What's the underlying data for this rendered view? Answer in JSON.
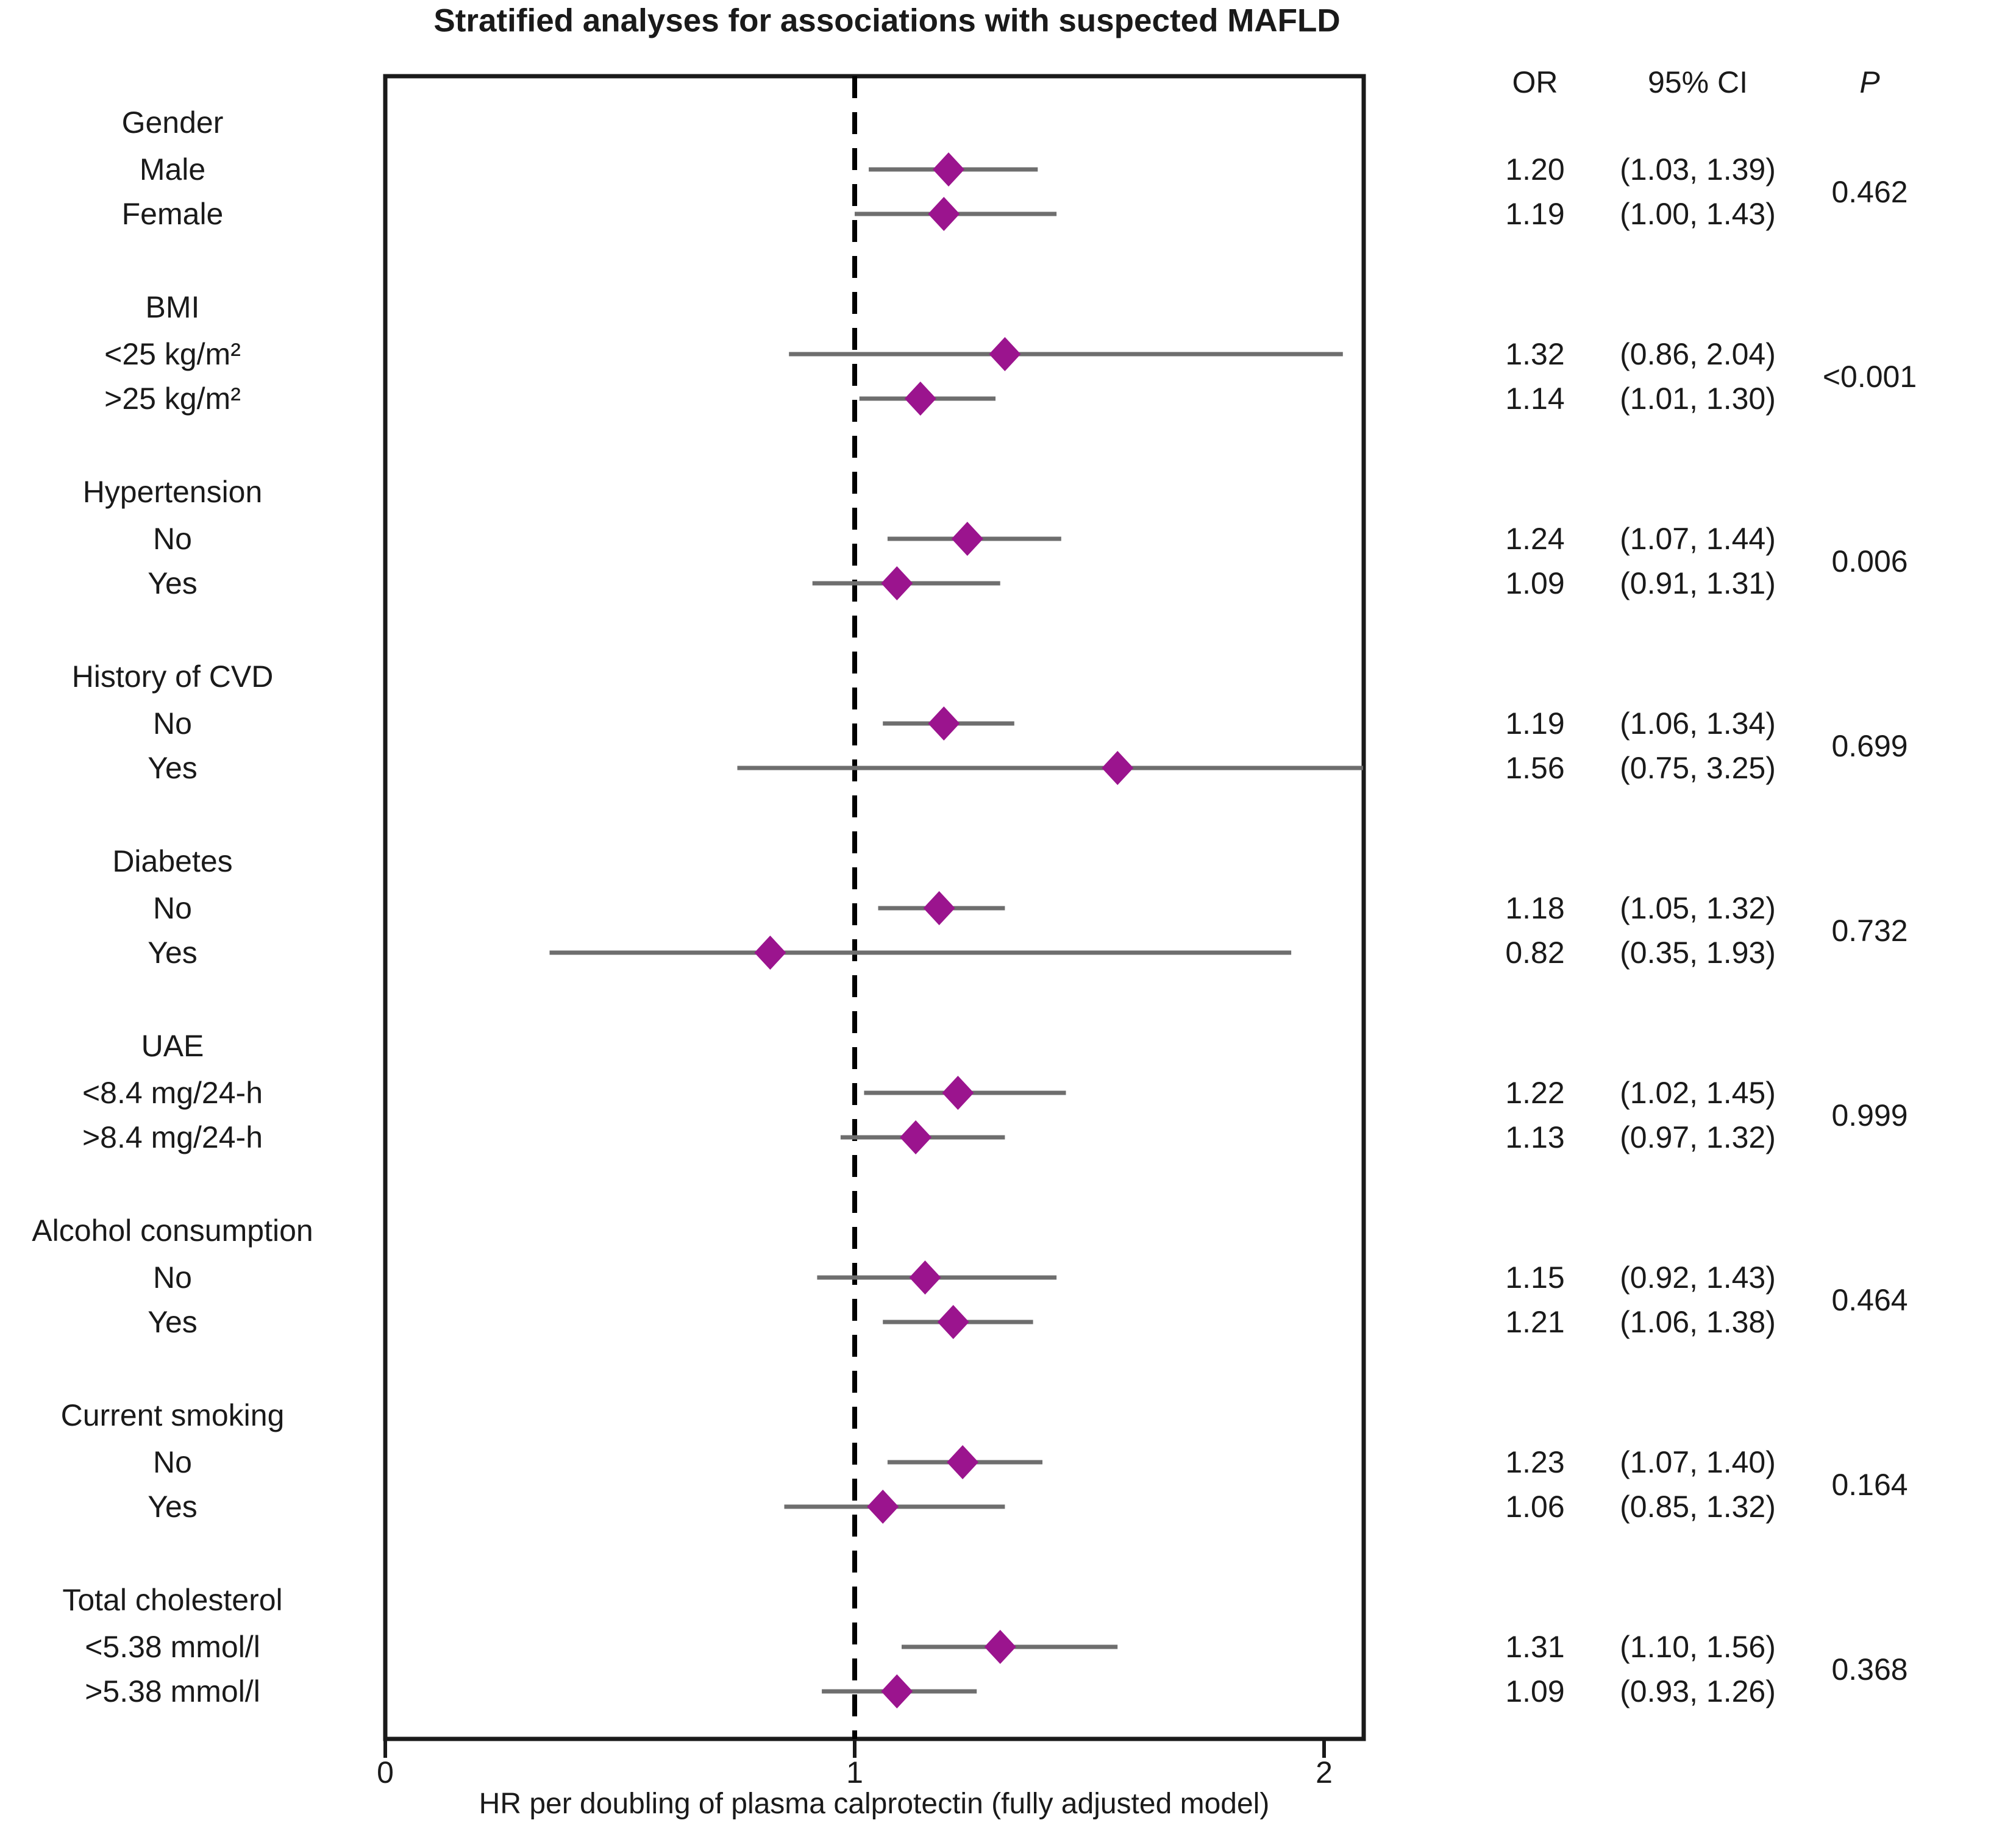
{
  "colors": {
    "diamond": "#9B148E",
    "ci_line": "#6E6E6E",
    "frame": "#1A1A1A",
    "reference_line": "#000000"
  },
  "chart_data": {
    "type": "forest",
    "title": "Stratified analyses for associations with suspected MAFLD",
    "xlabel": "HR per doubling of plasma calprotectin (fully adjusted model)",
    "xlim": [
      0,
      2.083
    ],
    "x_tick_values": [
      0,
      1,
      2
    ],
    "x_tick_labels": [
      "0",
      "1",
      "2"
    ],
    "reference_line": 1.0,
    "grid": false,
    "columns": {
      "or": "OR",
      "ci": "95% CI",
      "p": "P"
    },
    "groups": [
      {
        "label": "Gender",
        "p": "0.462",
        "rows": [
          {
            "label": "Male",
            "or": "1.20",
            "ci": "(1.03, 1.39)",
            "est": 1.2,
            "lo": 1.03,
            "hi": 1.39
          },
          {
            "label": "Female",
            "or": "1.19",
            "ci": "(1.00, 1.43)",
            "est": 1.19,
            "lo": 1.0,
            "hi": 1.43
          }
        ]
      },
      {
        "label": "BMI",
        "p": "<0.001",
        "rows": [
          {
            "label": "<25 kg/m²",
            "or": "1.32",
            "ci": "(0.86, 2.04)",
            "est": 1.32,
            "lo": 0.86,
            "hi": 2.04
          },
          {
            "label": ">25 kg/m²",
            "or": "1.14",
            "ci": "(1.01, 1.30)",
            "est": 1.14,
            "lo": 1.01,
            "hi": 1.3
          }
        ]
      },
      {
        "label": "Hypertension",
        "p": "0.006",
        "rows": [
          {
            "label": "No",
            "or": "1.24",
            "ci": "(1.07, 1.44)",
            "est": 1.24,
            "lo": 1.07,
            "hi": 1.44
          },
          {
            "label": "Yes",
            "or": "1.09",
            "ci": "(0.91, 1.31)",
            "est": 1.09,
            "lo": 0.91,
            "hi": 1.31
          }
        ]
      },
      {
        "label": "History of CVD",
        "p": "0.699",
        "rows": [
          {
            "label": "No",
            "or": "1.19",
            "ci": "(1.06, 1.34)",
            "est": 1.19,
            "lo": 1.06,
            "hi": 1.34
          },
          {
            "label": "Yes",
            "or": "1.56",
            "ci": "(0.75, 3.25)",
            "est": 1.56,
            "lo": 0.75,
            "hi": 3.25
          }
        ]
      },
      {
        "label": "Diabetes",
        "p": "0.732",
        "rows": [
          {
            "label": "No",
            "or": "1.18",
            "ci": "(1.05, 1.32)",
            "est": 1.18,
            "lo": 1.05,
            "hi": 1.32
          },
          {
            "label": "Yes",
            "or": "0.82",
            "ci": "(0.35, 1.93)",
            "est": 0.82,
            "lo": 0.35,
            "hi": 1.93
          }
        ]
      },
      {
        "label": "UAE",
        "p": "0.999",
        "rows": [
          {
            "label": "<8.4 mg/24-h",
            "or": "1.22",
            "ci": "(1.02, 1.45)",
            "est": 1.22,
            "lo": 1.02,
            "hi": 1.45
          },
          {
            "label": ">8.4 mg/24-h",
            "or": "1.13",
            "ci": "(0.97, 1.32)",
            "est": 1.13,
            "lo": 0.97,
            "hi": 1.32
          }
        ]
      },
      {
        "label": "Alcohol consumption",
        "p": "0.464",
        "rows": [
          {
            "label": "No",
            "or": "1.15",
            "ci": "(0.92, 1.43)",
            "est": 1.15,
            "lo": 0.92,
            "hi": 1.43
          },
          {
            "label": "Yes",
            "or": "1.21",
            "ci": "(1.06, 1.38)",
            "est": 1.21,
            "lo": 1.06,
            "hi": 1.38
          }
        ]
      },
      {
        "label": "Current smoking",
        "p": "0.164",
        "rows": [
          {
            "label": "No",
            "or": "1.23",
            "ci": "(1.07, 1.40)",
            "est": 1.23,
            "lo": 1.07,
            "hi": 1.4
          },
          {
            "label": "Yes",
            "or": "1.06",
            "ci": "(0.85, 1.32)",
            "est": 1.06,
            "lo": 0.85,
            "hi": 1.32
          }
        ]
      },
      {
        "label": "Total cholesterol",
        "p": "0.368",
        "rows": [
          {
            "label": "<5.38 mmol/l",
            "or": "1.31",
            "ci": "(1.10, 1.56)",
            "est": 1.31,
            "lo": 1.1,
            "hi": 1.56
          },
          {
            "label": ">5.38 mmol/l",
            "or": "1.09",
            "ci": "(0.93, 1.26)",
            "est": 1.09,
            "lo": 0.93,
            "hi": 1.26
          }
        ]
      }
    ]
  }
}
